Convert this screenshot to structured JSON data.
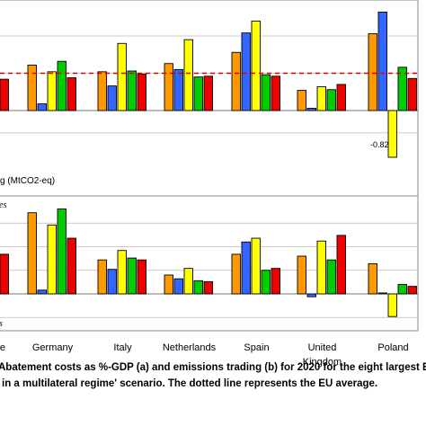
{
  "chart_data": [
    {
      "type": "bar",
      "panel": "a",
      "categories": [
        "",
        "Germany",
        "Italy",
        "Netherlands",
        "Spain",
        "United Kingdom",
        "Poland"
      ],
      "series_colors": [
        "#ff9900",
        "#3366ff",
        "#ffff00",
        "#00cc00",
        "#ee0000"
      ],
      "values": [
        [
          null,
          null,
          null,
          null,
          0.42
        ],
        [
          0.61,
          0.09,
          0.52,
          0.66,
          0.44
        ],
        [
          0.52,
          0.33,
          0.9,
          0.53,
          0.49
        ],
        [
          0.63,
          0.55,
          0.95,
          0.45,
          0.46
        ],
        [
          0.78,
          1.04,
          1.2,
          0.48,
          0.46
        ],
        [
          0.27,
          0.03,
          0.32,
          0.28,
          0.35
        ],
        [
          1.03,
          1.32,
          -0.82,
          0.58,
          0.43
        ]
      ],
      "reference_line": {
        "value": 0.5,
        "style": "dashed",
        "color": "#dd0000"
      },
      "annotations": [
        {
          "category": "Poland",
          "text": "-0.82"
        }
      ],
      "ylabel_fragment": "g (MtCO2-eq)"
    },
    {
      "type": "bar",
      "panel": "b",
      "categories": [
        "e",
        "Germany",
        "Italy",
        "Netherlands",
        "Spain",
        "United Kingdom",
        "Poland"
      ],
      "series_colors": [
        "#ff9900",
        "#3366ff",
        "#ffff00",
        "#00cc00",
        "#ee0000"
      ],
      "values": [
        [
          null,
          null,
          null,
          null,
          0.42
        ],
        [
          0.86,
          0.04,
          0.73,
          0.9,
          0.59
        ],
        [
          0.36,
          0.26,
          0.46,
          0.38,
          0.36
        ],
        [
          0.2,
          0.16,
          0.27,
          0.14,
          0.13
        ],
        [
          0.42,
          0.55,
          0.59,
          0.25,
          0.27
        ],
        [
          0.4,
          -0.03,
          0.56,
          0.36,
          0.62
        ],
        [
          0.32,
          0.01,
          -0.24,
          0.1,
          0.08
        ]
      ],
      "side_labels": [
        "es",
        "s"
      ]
    }
  ],
  "caption": {
    "line1": "Abatement costs as %-GDP (a) and emissions trading (b) for 2020 for the eight largest E",
    "line2": "in a multilateral regime' scenario. The dotted line represents the EU average."
  }
}
